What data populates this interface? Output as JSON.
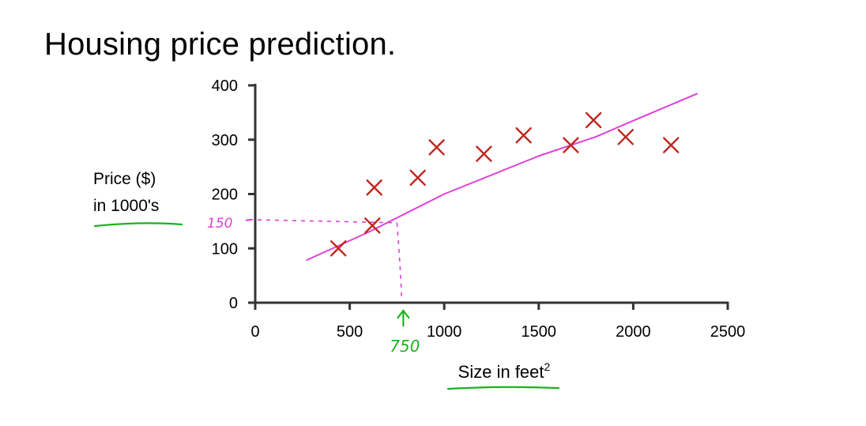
{
  "slide": {
    "title": "Housing price prediction."
  },
  "chart_data": {
    "type": "scatter",
    "title": "Housing price prediction.",
    "xlabel": "Size in feet",
    "xlabel_superscript": "2",
    "ylabel": [
      "Price ($)",
      "in 1000's"
    ],
    "xlim": [
      0,
      2500
    ],
    "ylim": [
      0,
      400
    ],
    "x_ticks": [
      0,
      500,
      1000,
      1500,
      2000,
      2500
    ],
    "y_ticks": [
      0,
      100,
      200,
      300,
      400
    ],
    "grid": false,
    "series": [
      {
        "marker": "x",
        "color": "#c0271f",
        "points": [
          {
            "x": 440,
            "y": 100
          },
          {
            "x": 620,
            "y": 142
          },
          {
            "x": 630,
            "y": 212
          },
          {
            "x": 860,
            "y": 230
          },
          {
            "x": 960,
            "y": 286
          },
          {
            "x": 1210,
            "y": 274
          },
          {
            "x": 1420,
            "y": 308
          },
          {
            "x": 1670,
            "y": 290
          },
          {
            "x": 1790,
            "y": 336
          },
          {
            "x": 1960,
            "y": 305
          },
          {
            "x": 2200,
            "y": 290
          }
        ]
      },
      {
        "type": "line",
        "color": "#e040d8",
        "points": [
          {
            "x": 270,
            "y": 78
          },
          {
            "x": 600,
            "y": 130
          },
          {
            "x": 1000,
            "y": 200
          },
          {
            "x": 1500,
            "y": 270
          },
          {
            "x": 1800,
            "y": 305
          },
          {
            "x": 2000,
            "y": 335
          },
          {
            "x": 2340,
            "y": 385
          }
        ]
      }
    ],
    "annotations": {
      "guide": {
        "x": 750,
        "y": 150,
        "color": "#e040d8"
      },
      "y_note": "150",
      "x_note": "750",
      "x_note_color": "#1db21d",
      "underline_color": "#1db21d"
    }
  }
}
